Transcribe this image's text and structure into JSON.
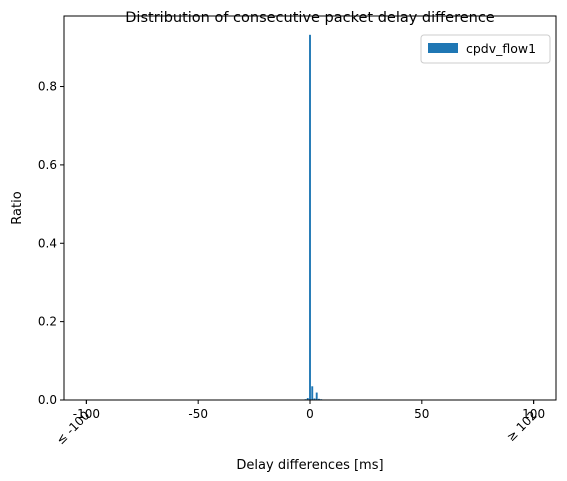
{
  "chart_data": {
    "type": "bar",
    "title": "Distribution of consecutive packet delay difference",
    "xlabel": "Delay differences [ms]",
    "ylabel": "Ratio",
    "xlim": [
      -110,
      110
    ],
    "ylim": [
      0,
      0.98
    ],
    "xticks": [
      {
        "value": -100,
        "label": "-100"
      },
      {
        "value": -50,
        "label": "-50"
      },
      {
        "value": 0,
        "label": "0"
      },
      {
        "value": 50,
        "label": "50"
      },
      {
        "value": 100,
        "label": "100"
      }
    ],
    "xticks_rotated": [
      {
        "value": -100,
        "label": "≤ -100"
      },
      {
        "value": 100,
        "label": "≥ 102"
      }
    ],
    "yticks": [
      {
        "value": 0.0,
        "label": "0.0"
      },
      {
        "value": 0.2,
        "label": "0.2"
      },
      {
        "value": 0.4,
        "label": "0.4"
      },
      {
        "value": 0.6,
        "label": "0.6"
      },
      {
        "value": 0.8,
        "label": "0.8"
      }
    ],
    "grid": false,
    "legend_position": "top-right",
    "bar_width": 1,
    "series": [
      {
        "name": "cpdv_flow1",
        "color": "#1f77b4",
        "points": [
          {
            "x": -2,
            "y": 0.002
          },
          {
            "x": -1,
            "y": 0.005
          },
          {
            "x": 0,
            "y": 0.932
          },
          {
            "x": 1,
            "y": 0.035
          },
          {
            "x": 2,
            "y": 0.004
          },
          {
            "x": 3,
            "y": 0.019
          },
          {
            "x": 4,
            "y": 0.003
          },
          {
            "x": 5,
            "y": 0.002
          },
          {
            "x": 6,
            "y": 0.001
          }
        ]
      }
    ]
  }
}
